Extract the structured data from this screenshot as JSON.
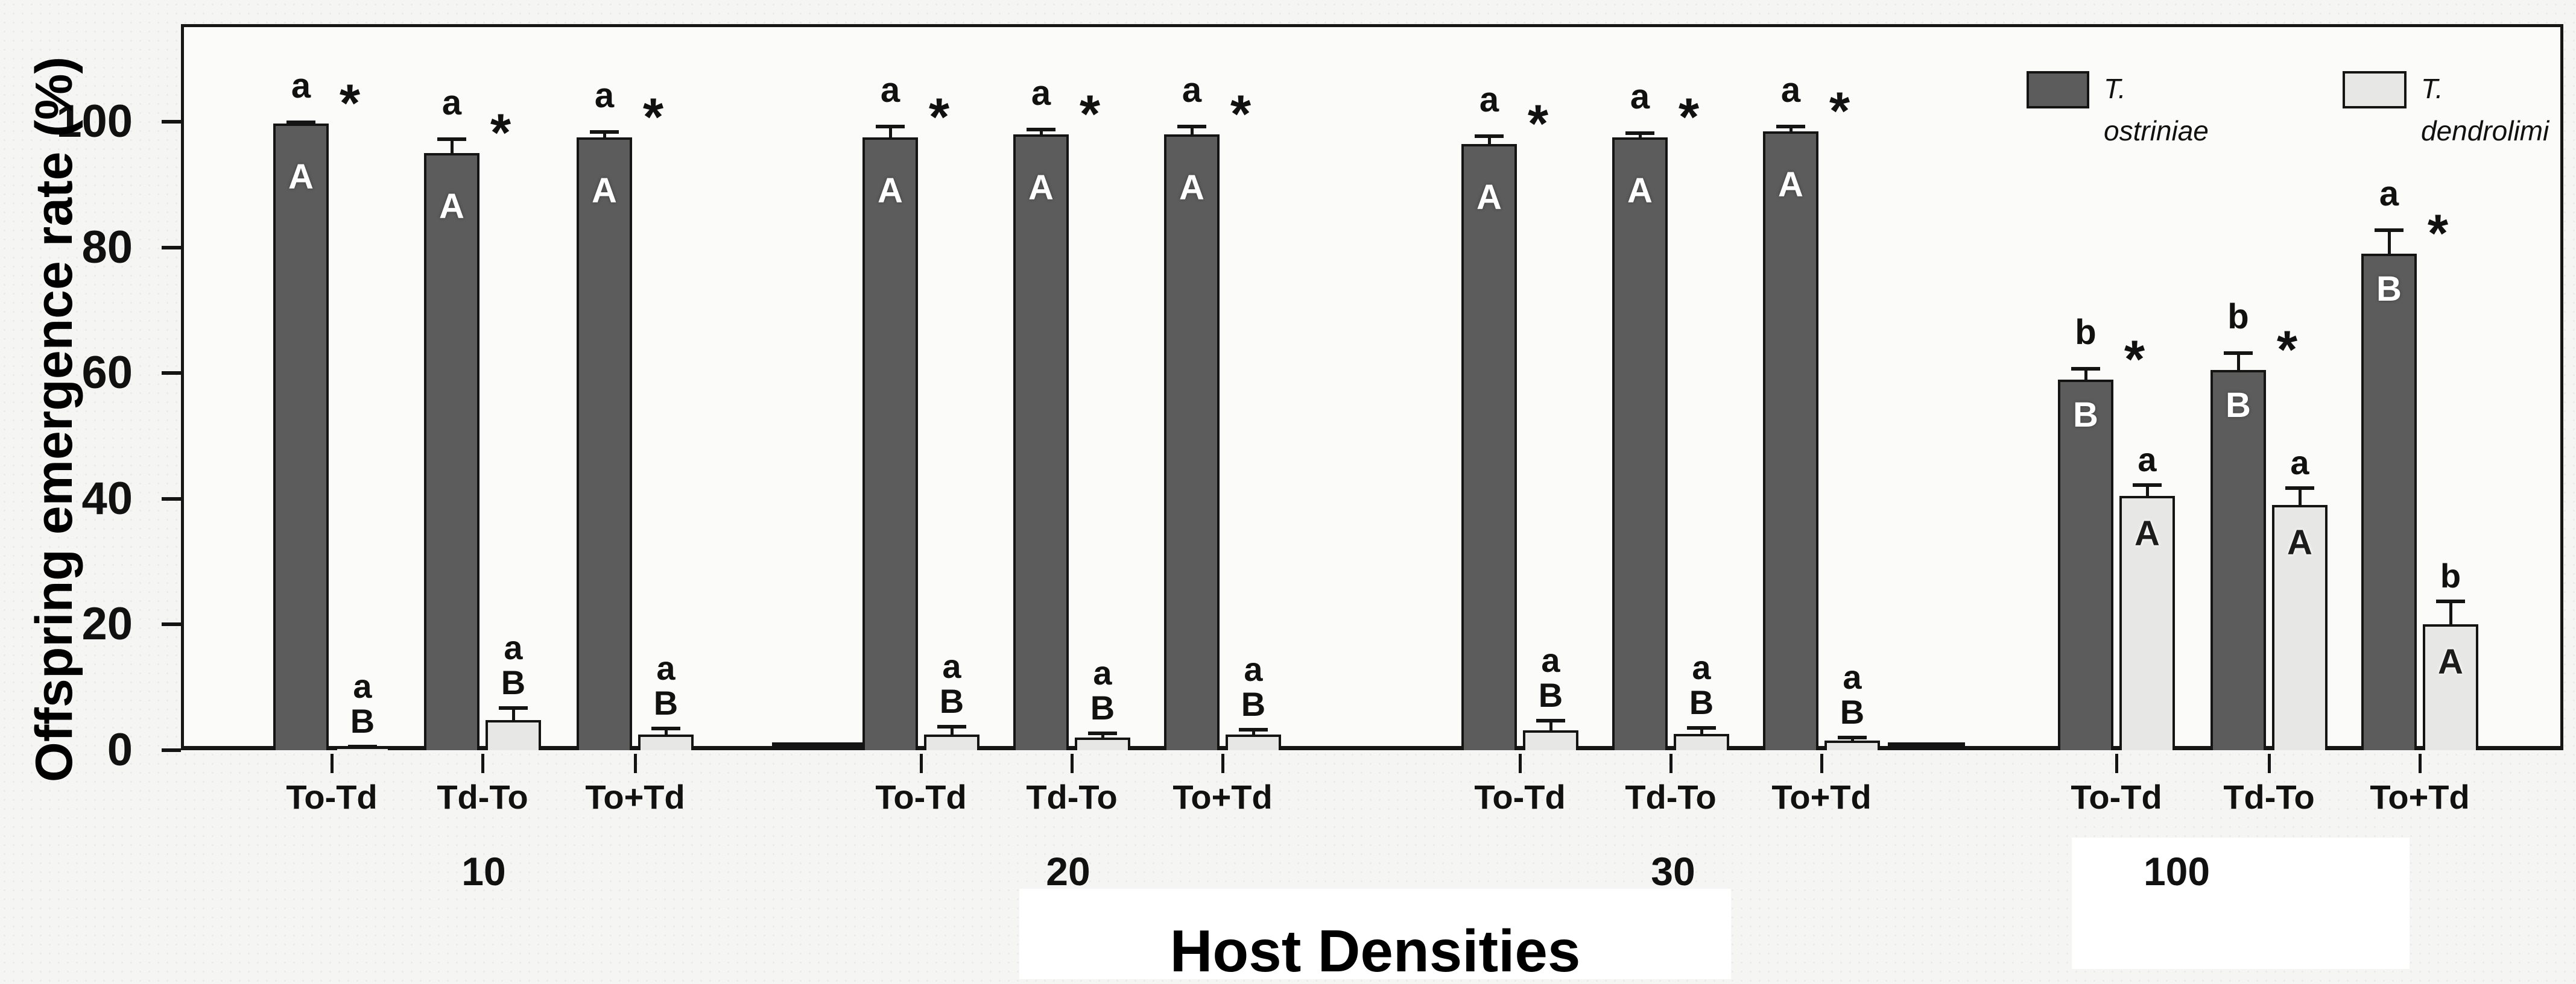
{
  "figure": {
    "ylabel": "Offspring emergence rate (%)",
    "xlabel": "Host Densities"
  },
  "chart_data": {
    "type": "bar",
    "title": "",
    "ylabel": "Offspring emergence rate (%)",
    "xlabel": "Host Densities",
    "ylim": [
      0,
      115
    ],
    "yticks": [
      0,
      20,
      40,
      60,
      80,
      100
    ],
    "grid": false,
    "legend_position": "top-right-inside",
    "series": [
      {
        "key": "ostriniae",
        "label": "T. ostriniae",
        "color": "#5c5c5c"
      },
      {
        "key": "dendrolimi",
        "label": "T. dendrolimi",
        "color": "#e7e7e6"
      }
    ],
    "groups": [
      {
        "density": "10",
        "pairs": [
          {
            "treatment": "To-Td",
            "ostriniae": {
              "value": 99.7,
              "err": 0.5,
              "above": "a",
              "inside": "A",
              "star": true
            },
            "dendrolimi": {
              "value": 0.6,
              "err": 0.3,
              "above": [
                "a",
                "B"
              ]
            }
          },
          {
            "treatment": "Td-To",
            "ostriniae": {
              "value": 95.0,
              "err": 2.5,
              "above": "a",
              "inside": "A",
              "star": true
            },
            "dendrolimi": {
              "value": 4.8,
              "err": 2.2,
              "above": [
                "a",
                "B"
              ]
            }
          },
          {
            "treatment": "To+Td",
            "ostriniae": {
              "value": 97.5,
              "err": 1.2,
              "above": "a",
              "inside": "A",
              "star": true
            },
            "dendrolimi": {
              "value": 2.5,
              "err": 1.2,
              "above": [
                "a",
                "B"
              ]
            }
          }
        ]
      },
      {
        "density": "20",
        "pairs": [
          {
            "treatment": "To-Td",
            "ostriniae": {
              "value": 97.5,
              "err": 2.0,
              "above": "a",
              "inside": "A",
              "star": true
            },
            "dendrolimi": {
              "value": 2.5,
              "err": 1.5,
              "above": [
                "a",
                "B"
              ]
            }
          },
          {
            "treatment": "Td-To",
            "ostriniae": {
              "value": 98.0,
              "err": 1.0,
              "above": "a",
              "inside": "A",
              "star": true
            },
            "dendrolimi": {
              "value": 2.0,
              "err": 1.0,
              "above": [
                "a",
                "B"
              ]
            }
          },
          {
            "treatment": "To+Td",
            "ostriniae": {
              "value": 98.0,
              "err": 1.5,
              "above": "a",
              "inside": "A",
              "star": true
            },
            "dendrolimi": {
              "value": 2.5,
              "err": 1.0,
              "above": [
                "a",
                "B"
              ]
            }
          }
        ]
      },
      {
        "density": "30",
        "pairs": [
          {
            "treatment": "To-Td",
            "ostriniae": {
              "value": 96.5,
              "err": 1.5,
              "above": "a",
              "inside": "A",
              "star": true
            },
            "dendrolimi": {
              "value": 3.2,
              "err": 1.8,
              "above": [
                "a",
                "B"
              ]
            }
          },
          {
            "treatment": "Td-To",
            "ostriniae": {
              "value": 97.5,
              "err": 1.0,
              "above": "a",
              "inside": "A",
              "star": true
            },
            "dendrolimi": {
              "value": 2.6,
              "err": 1.2,
              "above": [
                "a",
                "B"
              ]
            }
          },
          {
            "treatment": "To+Td",
            "ostriniae": {
              "value": 98.5,
              "err": 1.0,
              "above": "a",
              "inside": "A",
              "star": true
            },
            "dendrolimi": {
              "value": 1.5,
              "err": 0.8,
              "above": [
                "a",
                "B"
              ]
            }
          }
        ]
      },
      {
        "density": "100",
        "pairs": [
          {
            "treatment": "To-Td",
            "ostriniae": {
              "value": 59.0,
              "err": 2.0,
              "above": "b",
              "inside": "B",
              "star": true
            },
            "dendrolimi": {
              "value": 40.5,
              "err": 2.0,
              "above": [
                "a"
              ],
              "inside": "A"
            }
          },
          {
            "treatment": "Td-To",
            "ostriniae": {
              "value": 60.5,
              "err": 3.0,
              "above": "b",
              "inside": "B",
              "star": true
            },
            "dendrolimi": {
              "value": 39.0,
              "err": 3.0,
              "above": [
                "a"
              ],
              "inside": "A"
            }
          },
          {
            "treatment": "To+Td",
            "ostriniae": {
              "value": 79.0,
              "err": 4.0,
              "above": "a",
              "inside": "B",
              "star": true
            },
            "dendrolimi": {
              "value": 20.0,
              "err": 4.0,
              "above": [
                "b"
              ],
              "inside": "A"
            }
          }
        ]
      }
    ],
    "annotations": {
      "star_symbol": "*"
    }
  }
}
